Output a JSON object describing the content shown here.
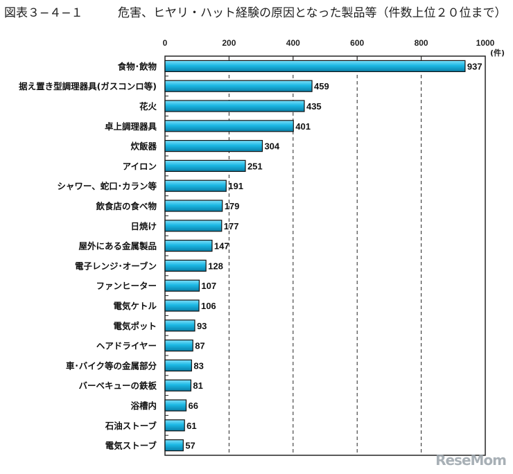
{
  "figure_id": "図表３−４−１",
  "watermark": "ReseMom",
  "chart_data": {
    "type": "bar",
    "orientation": "horizontal",
    "title": "危害、ヒヤリ・ハット経験の原因となった製品等（件数上位２０位まで）",
    "unit_label": "(件)",
    "xlim": [
      0,
      1000
    ],
    "xticks": [
      0,
      200,
      400,
      600,
      800,
      1000
    ],
    "grid": "vertical dashed",
    "bar_color": "#1cb8e4",
    "categories": [
      "食物･飲物",
      "据え置き型調理器具(ガスコンロ等)",
      "花火",
      "卓上調理器具",
      "炊飯器",
      "アイロン",
      "シャワー、蛇口･カラン等",
      "飲食店の食べ物",
      "日焼け",
      "屋外にある金属製品",
      "電子レンジ･オーブン",
      "ファンヒーター",
      "電気ケトル",
      "電気ポット",
      "ヘアドライヤー",
      "車･バイク等の金属部分",
      "バーベキューの鉄板",
      "浴槽内",
      "石油ストーブ",
      "電気ストーブ"
    ],
    "values": [
      937,
      459,
      435,
      401,
      304,
      251,
      191,
      179,
      177,
      147,
      128,
      107,
      106,
      93,
      87,
      83,
      81,
      66,
      61,
      57
    ]
  }
}
